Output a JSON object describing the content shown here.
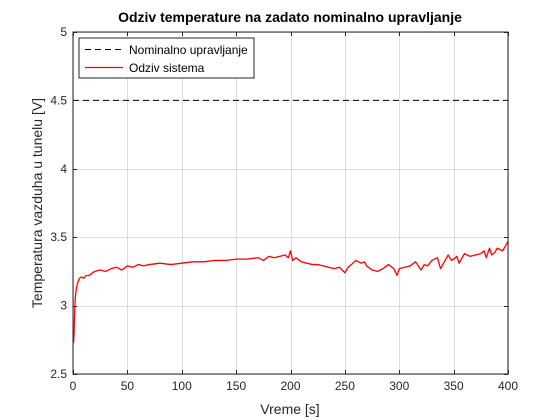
{
  "chart_data": {
    "type": "line",
    "title": "Odziv temperature na zadato nominalno upravljanje",
    "xlabel": "Vreme [s]",
    "ylabel": "Temperatura vazduha u tunelu [V]",
    "xlim": [
      0,
      400
    ],
    "ylim": [
      2.5,
      5
    ],
    "xticks": [
      0,
      50,
      100,
      150,
      200,
      250,
      300,
      350,
      400
    ],
    "yticks": [
      2.5,
      3,
      3.5,
      4,
      4.5,
      5
    ],
    "xtick_labels": [
      "0",
      "50",
      "100",
      "150",
      "200",
      "250",
      "300",
      "350",
      "400"
    ],
    "ytick_labels": [
      "2.5",
      "3",
      "3.5",
      "4",
      "4.5",
      "5"
    ],
    "grid": true,
    "legend_position": "top-left",
    "series": [
      {
        "name": "Nominalno upravljanje",
        "style": "dashed",
        "color": "#000000",
        "x": [
          0,
          400
        ],
        "y": [
          4.5,
          4.5
        ]
      },
      {
        "name": "Odziv sistema",
        "style": "solid",
        "color": "#ff0000",
        "x": [
          0,
          0.5,
          1,
          1.5,
          2,
          3,
          4,
          5,
          6,
          8,
          10,
          12,
          15,
          18,
          20,
          25,
          30,
          35,
          40,
          45,
          50,
          55,
          60,
          65,
          70,
          80,
          90,
          100,
          110,
          120,
          130,
          140,
          150,
          160,
          170,
          175,
          180,
          185,
          190,
          195,
          198,
          200,
          202,
          205,
          210,
          215,
          220,
          225,
          230,
          235,
          240,
          245,
          250,
          253,
          256,
          260,
          265,
          268,
          270,
          275,
          280,
          285,
          290,
          295,
          298,
          300,
          305,
          310,
          315,
          320,
          323,
          326,
          330,
          335,
          338,
          340,
          345,
          348,
          350,
          353,
          355,
          360,
          365,
          370,
          375,
          378,
          380,
          383,
          385,
          388,
          390,
          395,
          398,
          400
        ],
        "y": [
          2.76,
          2.73,
          2.8,
          2.95,
          3.05,
          3.12,
          3.16,
          3.18,
          3.2,
          3.21,
          3.2,
          3.22,
          3.22,
          3.24,
          3.25,
          3.26,
          3.25,
          3.27,
          3.28,
          3.26,
          3.29,
          3.28,
          3.3,
          3.29,
          3.3,
          3.31,
          3.3,
          3.31,
          3.32,
          3.32,
          3.33,
          3.33,
          3.34,
          3.34,
          3.35,
          3.33,
          3.36,
          3.35,
          3.36,
          3.37,
          3.35,
          3.4,
          3.33,
          3.35,
          3.32,
          3.31,
          3.3,
          3.3,
          3.29,
          3.28,
          3.27,
          3.28,
          3.24,
          3.28,
          3.3,
          3.33,
          3.31,
          3.32,
          3.29,
          3.26,
          3.25,
          3.27,
          3.3,
          3.27,
          3.22,
          3.27,
          3.28,
          3.29,
          3.32,
          3.26,
          3.3,
          3.29,
          3.33,
          3.35,
          3.27,
          3.3,
          3.37,
          3.33,
          3.34,
          3.36,
          3.31,
          3.38,
          3.36,
          3.37,
          3.38,
          3.4,
          3.35,
          3.42,
          3.37,
          3.39,
          3.42,
          3.4,
          3.44,
          3.47
        ]
      }
    ]
  }
}
